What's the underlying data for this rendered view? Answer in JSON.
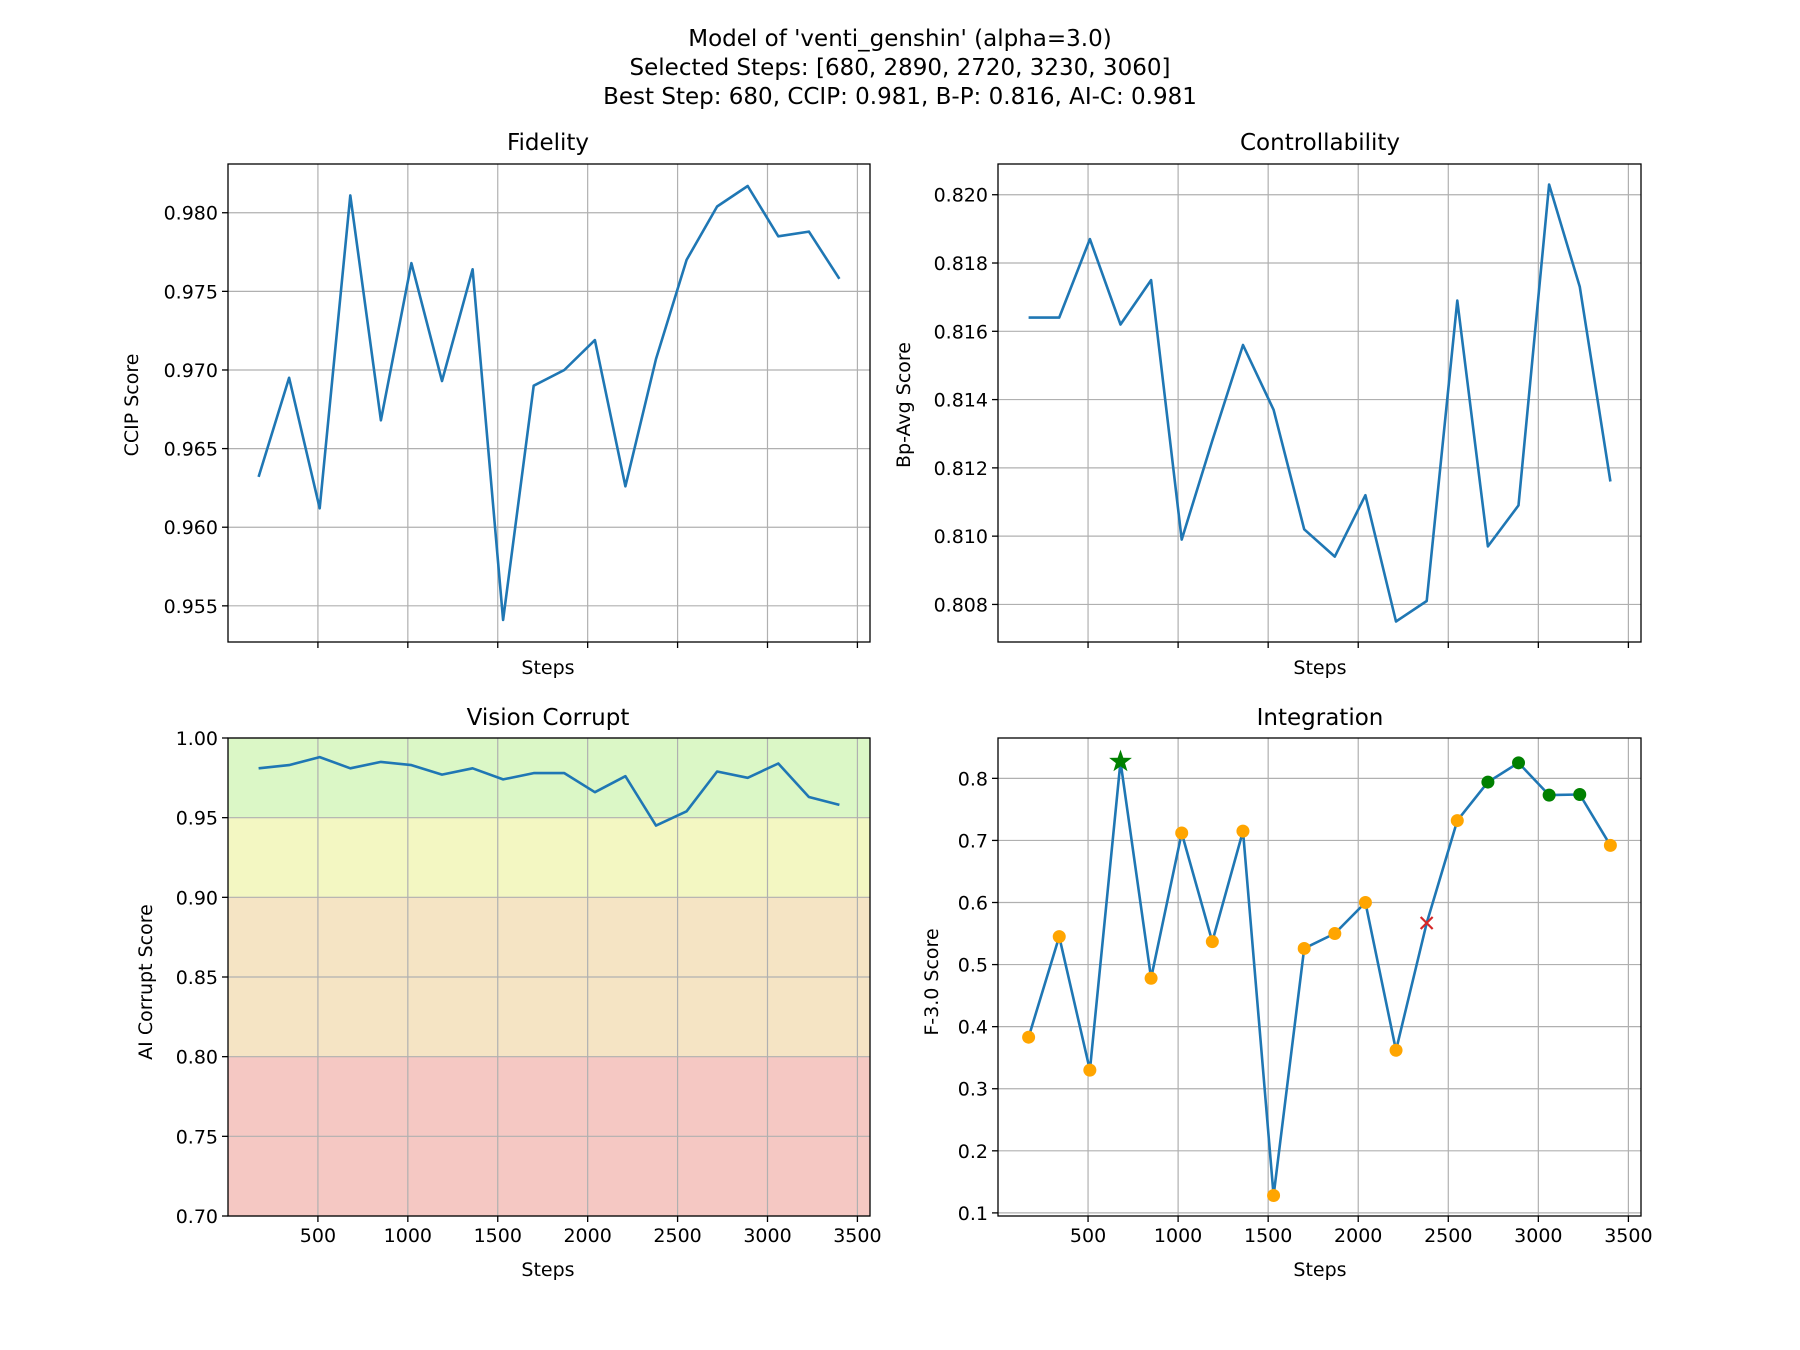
{
  "figure": {
    "title_lines": [
      "Model of 'venti_genshin' (alpha=3.0)",
      "Selected Steps: [680, 2890, 2720, 3230, 3060]",
      "Best Step: 680, CCIP: 0.981, B-P: 0.816, AI-C: 0.981"
    ]
  },
  "chart_data": [
    {
      "type": "line",
      "title": "Fidelity",
      "xlabel": "Steps",
      "ylabel": "CCIP Score",
      "xlim": [
        0,
        3570
      ],
      "ylim": [
        0.9527,
        0.9831
      ],
      "xticks": [
        500,
        1000,
        1500,
        2000,
        2500,
        3000,
        3500
      ],
      "show_xtick_labels": false,
      "yticks": [
        0.955,
        0.96,
        0.965,
        0.97,
        0.975,
        0.98
      ],
      "ytick_labels": [
        "0.955",
        "0.960",
        "0.965",
        "0.970",
        "0.975",
        "0.980"
      ],
      "grid": true,
      "color": "#1f77b4",
      "x": [
        170,
        340,
        510,
        680,
        850,
        1020,
        1190,
        1360,
        1530,
        1700,
        1870,
        2040,
        2210,
        2380,
        2550,
        2720,
        2890,
        3060,
        3230,
        3400
      ],
      "y": [
        0.9632,
        0.9695,
        0.9612,
        0.9811,
        0.9668,
        0.9768,
        0.9693,
        0.9764,
        0.9541,
        0.969,
        0.97,
        0.9719,
        0.9626,
        0.9707,
        0.977,
        0.9804,
        0.9817,
        0.9785,
        0.9788,
        0.9758
      ]
    },
    {
      "type": "line",
      "title": "Controllability",
      "xlabel": "Steps",
      "ylabel": "Bp-Avg Score",
      "xlim": [
        0,
        3570
      ],
      "ylim": [
        0.8069,
        0.8209
      ],
      "xticks": [
        500,
        1000,
        1500,
        2000,
        2500,
        3000,
        3500
      ],
      "show_xtick_labels": false,
      "yticks": [
        0.808,
        0.81,
        0.812,
        0.814,
        0.816,
        0.818,
        0.82
      ],
      "ytick_labels": [
        "0.808",
        "0.810",
        "0.812",
        "0.814",
        "0.816",
        "0.818",
        "0.820"
      ],
      "grid": true,
      "color": "#1f77b4",
      "x": [
        170,
        340,
        510,
        680,
        850,
        1020,
        1190,
        1360,
        1530,
        1700,
        1870,
        2040,
        2210,
        2380,
        2550,
        2720,
        2890,
        3060,
        3230,
        3400
      ],
      "y": [
        0.8164,
        0.8164,
        0.8187,
        0.8162,
        0.8175,
        0.8099,
        0.8128,
        0.8156,
        0.8137,
        0.8102,
        0.8094,
        0.8112,
        0.8075,
        0.8081,
        0.8169,
        0.8097,
        0.8109,
        0.8203,
        0.8173,
        0.8116
      ]
    },
    {
      "type": "line",
      "title": "Vision Corrupt",
      "xlabel": "Steps",
      "ylabel": "AI Corrupt Score",
      "xlim": [
        0,
        3570
      ],
      "ylim": [
        0.7,
        1.0
      ],
      "xticks": [
        500,
        1000,
        1500,
        2000,
        2500,
        3000,
        3500
      ],
      "xtick_labels": [
        "500",
        "1000",
        "1500",
        "2000",
        "2500",
        "3000",
        "3500"
      ],
      "show_xtick_labels": true,
      "yticks": [
        0.7,
        0.75,
        0.8,
        0.85,
        0.9,
        0.95,
        1.0
      ],
      "ytick_labels": [
        "0.70",
        "0.75",
        "0.80",
        "0.85",
        "0.90",
        "0.95",
        "1.00"
      ],
      "grid": true,
      "color": "#1f77b4",
      "bands": [
        {
          "from": 0.95,
          "to": 1.0,
          "color": "#dbf7c6"
        },
        {
          "from": 0.9,
          "to": 0.95,
          "color": "#f3f7c2"
        },
        {
          "from": 0.8,
          "to": 0.9,
          "color": "#f5e4c4"
        },
        {
          "from": 0.7,
          "to": 0.8,
          "color": "#f5c8c3"
        }
      ],
      "x": [
        170,
        340,
        510,
        680,
        850,
        1020,
        1190,
        1360,
        1530,
        1700,
        1870,
        2040,
        2210,
        2380,
        2550,
        2720,
        2890,
        3060,
        3230,
        3400
      ],
      "y": [
        0.981,
        0.983,
        0.988,
        0.981,
        0.985,
        0.983,
        0.977,
        0.981,
        0.974,
        0.978,
        0.978,
        0.966,
        0.976,
        0.945,
        0.954,
        0.979,
        0.975,
        0.984,
        0.963,
        0.958
      ]
    },
    {
      "type": "line",
      "title": "Integration",
      "xlabel": "Steps",
      "ylabel": "F-3.0 Score",
      "xlim": [
        0,
        3570
      ],
      "ylim": [
        0.095,
        0.865
      ],
      "xticks": [
        500,
        1000,
        1500,
        2000,
        2500,
        3000,
        3500
      ],
      "xtick_labels": [
        "500",
        "1000",
        "1500",
        "2000",
        "2500",
        "3000",
        "3500"
      ],
      "show_xtick_labels": true,
      "yticks": [
        0.1,
        0.2,
        0.3,
        0.4,
        0.5,
        0.6,
        0.7,
        0.8
      ],
      "ytick_labels": [
        "0.1",
        "0.2",
        "0.3",
        "0.4",
        "0.5",
        "0.6",
        "0.7",
        "0.8"
      ],
      "grid": true,
      "color": "#1f77b4",
      "marker_colors": {
        "normal": "#ffa500",
        "selected": "#008000",
        "best": "#008000",
        "excluded": "#d62728"
      },
      "x": [
        170,
        340,
        510,
        680,
        850,
        1020,
        1190,
        1360,
        1530,
        1700,
        1870,
        2040,
        2210,
        2380,
        2550,
        2720,
        2890,
        3060,
        3230,
        3400
      ],
      "y": [
        0.383,
        0.545,
        0.33,
        0.827,
        0.478,
        0.712,
        0.537,
        0.715,
        0.128,
        0.526,
        0.55,
        0.6,
        0.362,
        0.567,
        0.732,
        0.794,
        0.825,
        0.773,
        0.774,
        0.692
      ],
      "markers": [
        "normal",
        "normal",
        "normal",
        "best",
        "normal",
        "normal",
        "normal",
        "normal",
        "normal",
        "normal",
        "normal",
        "normal",
        "normal",
        "excluded",
        "normal",
        "selected",
        "selected",
        "selected",
        "selected",
        "normal"
      ]
    }
  ]
}
